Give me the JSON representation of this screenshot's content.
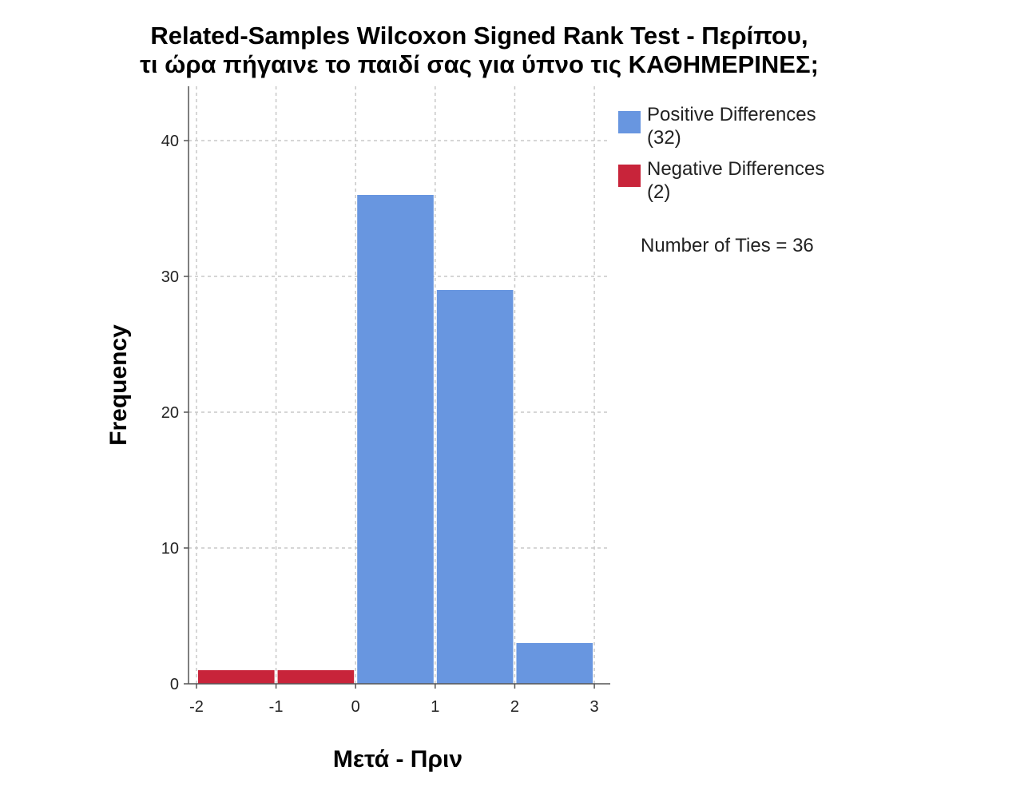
{
  "chart_data": {
    "type": "bar",
    "title": "Related-Samples Wilcoxon Signed Rank Test - Περίπου,",
    "subtitle": "τι ώρα πήγαινε το παιδί σας για ύπνο τις  ΚΑΘΗΜΕΡΙΝΕΣ;",
    "xlabel": "Μετά - Πριν",
    "ylabel": "Frequency",
    "xlim": [
      -2.1,
      3.2
    ],
    "ylim": [
      0,
      44
    ],
    "x_ticks": [
      -2,
      -1,
      0,
      1,
      2,
      3
    ],
    "y_ticks": [
      0,
      10,
      20,
      30,
      40
    ],
    "grid": true,
    "legend_position": "right",
    "series": [
      {
        "name": "Positive Differences",
        "count_label": "(32)",
        "color": "#6896e0",
        "bins": [
          {
            "from": 0,
            "to": 1,
            "value": 36
          },
          {
            "from": 1,
            "to": 2,
            "value": 29
          },
          {
            "from": 2,
            "to": 3,
            "value": 3
          }
        ]
      },
      {
        "name": "Negative Differences",
        "count_label": "(2)",
        "color": "#c8243a",
        "bins": [
          {
            "from": -2,
            "to": -1,
            "value": 1
          },
          {
            "from": -1,
            "to": 0,
            "value": 1
          }
        ]
      }
    ],
    "annotation": "Number of Ties = 36"
  }
}
